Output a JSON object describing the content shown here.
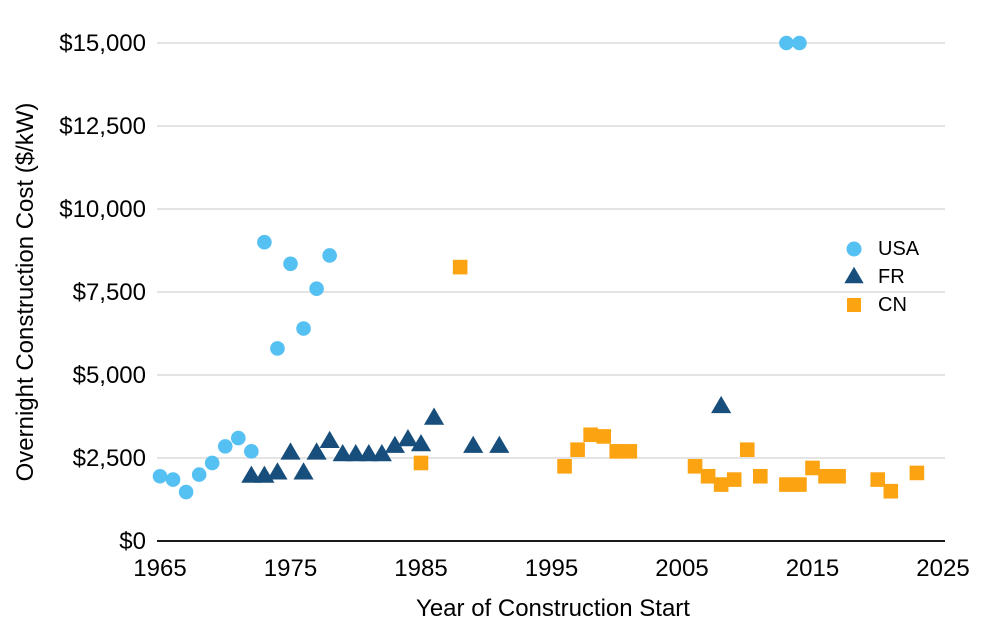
{
  "chart_data": {
    "type": "scatter",
    "title": "",
    "xlabel": "Year of Construction Start",
    "ylabel": "Overnight Construction Cost ($/kW)",
    "xlim": [
      1965,
      2025
    ],
    "ylim": [
      0,
      15000
    ],
    "grid": "horizontal",
    "legend_position": "inside-right",
    "x_ticks": [
      {
        "value": 1965,
        "label": "1965"
      },
      {
        "value": 1975,
        "label": "1975"
      },
      {
        "value": 1985,
        "label": "1985"
      },
      {
        "value": 1995,
        "label": "1995"
      },
      {
        "value": 2005,
        "label": "2005"
      },
      {
        "value": 2015,
        "label": "2015"
      },
      {
        "value": 2025,
        "label": "2025"
      }
    ],
    "y_ticks": [
      {
        "value": 0,
        "label": "$0"
      },
      {
        "value": 2500,
        "label": "$2,500"
      },
      {
        "value": 5000,
        "label": "$5,000"
      },
      {
        "value": 7500,
        "label": "$7,500"
      },
      {
        "value": 10000,
        "label": "$10,000"
      },
      {
        "value": 12500,
        "label": "$12,500"
      },
      {
        "value": 15000,
        "label": "$15,000"
      }
    ],
    "colors": {
      "gridline": "#C9C9C9",
      "axis_line": "#1A1A1A",
      "text": "#000000"
    },
    "series": [
      {
        "name": "USA",
        "marker": "circle",
        "color": "#55C0F2",
        "points": [
          [
            1965,
            1950
          ],
          [
            1966,
            1850
          ],
          [
            1967,
            1475
          ],
          [
            1968,
            2000
          ],
          [
            1969,
            2350
          ],
          [
            1970,
            2850
          ],
          [
            1971,
            3100
          ],
          [
            1972,
            2700
          ],
          [
            1973,
            9000
          ],
          [
            1974,
            5800
          ],
          [
            1975,
            8350
          ],
          [
            1976,
            6400
          ],
          [
            1977,
            7600
          ],
          [
            1978,
            8600
          ],
          [
            2013,
            15000
          ],
          [
            2014,
            15000
          ]
        ]
      },
      {
        "name": "FR",
        "marker": "triangle",
        "color": "#174E7C",
        "points": [
          [
            1972,
            1950
          ],
          [
            1973,
            1950
          ],
          [
            1974,
            2050
          ],
          [
            1975,
            2650
          ],
          [
            1976,
            2050
          ],
          [
            1977,
            2650
          ],
          [
            1978,
            3000
          ],
          [
            1979,
            2600
          ],
          [
            1980,
            2600
          ],
          [
            1981,
            2600
          ],
          [
            1982,
            2600
          ],
          [
            1983,
            2850
          ],
          [
            1984,
            3050
          ],
          [
            1985,
            2900
          ],
          [
            1986,
            3700
          ],
          [
            1989,
            2850
          ],
          [
            1991,
            2850
          ],
          [
            2008,
            4050
          ]
        ]
      },
      {
        "name": "CN",
        "marker": "square",
        "color": "#FCA311",
        "points": [
          [
            1985,
            2350
          ],
          [
            1988,
            8250
          ],
          [
            1996,
            2250
          ],
          [
            1997,
            2750
          ],
          [
            1998,
            3200
          ],
          [
            1999,
            3150
          ],
          [
            2000,
            2700
          ],
          [
            2001,
            2700
          ],
          [
            2006,
            2250
          ],
          [
            2007,
            1950
          ],
          [
            2008,
            1700
          ],
          [
            2009,
            1850
          ],
          [
            2010,
            2750
          ],
          [
            2011,
            1950
          ],
          [
            2013,
            1700
          ],
          [
            2014,
            1700
          ],
          [
            2015,
            2200
          ],
          [
            2016,
            1950
          ],
          [
            2017,
            1950
          ],
          [
            2020,
            1850
          ],
          [
            2021,
            1500
          ],
          [
            2023,
            2050
          ]
        ]
      }
    ]
  }
}
